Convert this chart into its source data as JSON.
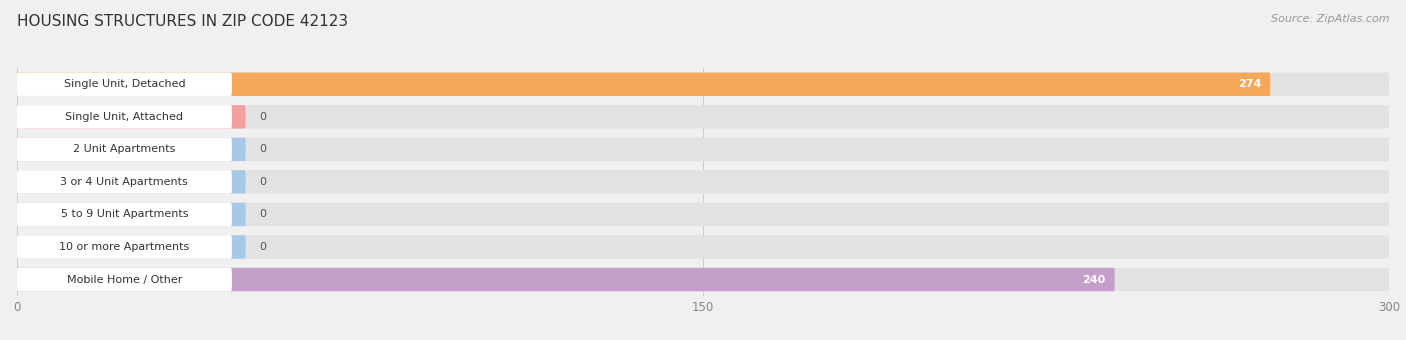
{
  "title": "HOUSING STRUCTURES IN ZIP CODE 42123",
  "source": "Source: ZipAtlas.com",
  "categories": [
    "Single Unit, Detached",
    "Single Unit, Attached",
    "2 Unit Apartments",
    "3 or 4 Unit Apartments",
    "5 to 9 Unit Apartments",
    "10 or more Apartments",
    "Mobile Home / Other"
  ],
  "values": [
    274,
    0,
    0,
    0,
    0,
    0,
    240
  ],
  "bar_colors": [
    "#F5A85A",
    "#F4A0A0",
    "#A8C8E8",
    "#A8C8E8",
    "#A8C8E8",
    "#A8C8E8",
    "#C49FCA"
  ],
  "xlim": [
    0,
    300
  ],
  "xticks": [
    0,
    150,
    300
  ],
  "background_color": "#f0f0f0",
  "bar_background_color": "#e2e2e2",
  "white_color": "#ffffff",
  "title_fontsize": 11,
  "source_fontsize": 8,
  "label_fontsize": 8,
  "value_fontsize": 8
}
